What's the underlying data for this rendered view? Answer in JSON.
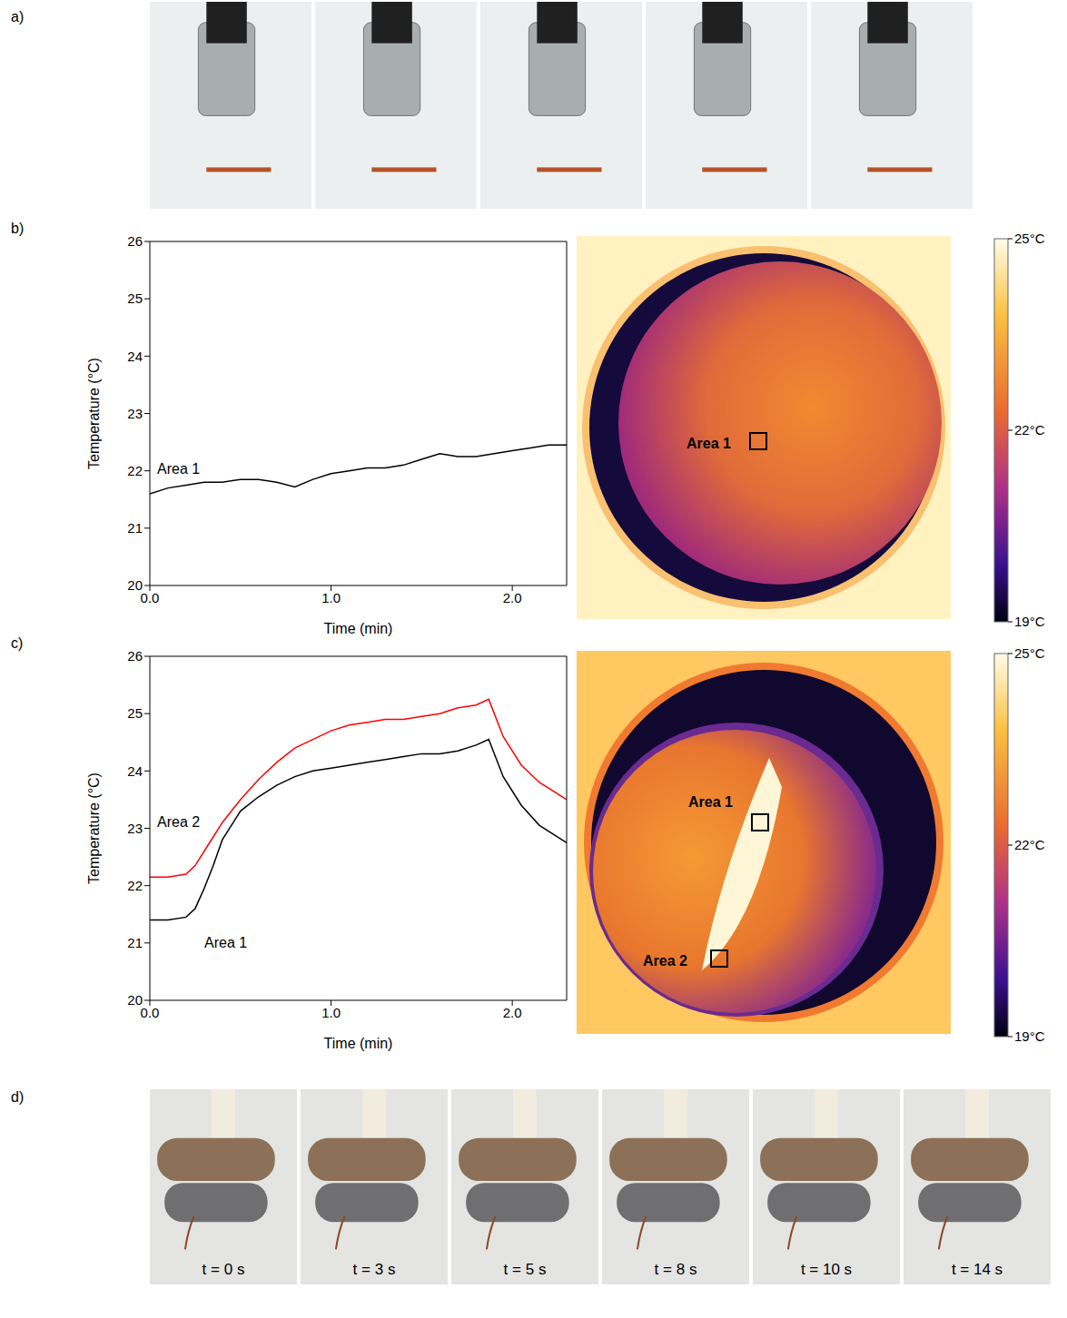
{
  "chart_data": [
    {
      "panel": "b)",
      "type": "line",
      "xlabel": "Time (min)",
      "ylabel": "Temperature (°C)",
      "x": [
        0,
        0.1,
        0.2,
        0.3,
        0.4,
        0.5,
        0.6,
        0.7,
        0.8,
        0.9,
        1.0,
        1.1,
        1.2,
        1.3,
        1.4,
        1.5,
        1.6,
        1.7,
        1.8,
        1.9,
        2.0,
        2.1,
        2.2,
        2.3
      ],
      "series": [
        {
          "name": "Area 1",
          "color": "#000000",
          "values": [
            21.6,
            21.7,
            21.75,
            21.8,
            21.8,
            21.85,
            21.85,
            21.8,
            21.72,
            21.85,
            21.95,
            22.0,
            22.05,
            22.05,
            22.1,
            22.2,
            22.3,
            22.25,
            22.25,
            22.3,
            22.35,
            22.4,
            22.45,
            22.45
          ]
        }
      ],
      "xlim": [
        0,
        2.3
      ],
      "xticks": [
        {
          "value": 0,
          "label": "0.0"
        },
        {
          "value": 1,
          "label": "1.0"
        },
        {
          "value": 2,
          "label": "2.0"
        }
      ],
      "ylim": [
        20,
        26
      ],
      "yticks": [
        20,
        21,
        22,
        23,
        24,
        25,
        26
      ],
      "image": {
        "areas": [
          "Area 1"
        ],
        "colorbar": {
          "range": [
            19,
            25
          ],
          "ticks": [
            {
              "value": 25,
              "label": "25°C"
            },
            {
              "value": 22,
              "label": "22°C"
            },
            {
              "value": 19,
              "label": "19°C"
            }
          ]
        }
      }
    },
    {
      "panel": "c)",
      "type": "line",
      "xlabel": "Time (min)",
      "ylabel": "Temperature (°C)",
      "x": [
        0,
        0.1,
        0.2,
        0.25,
        0.3,
        0.35,
        0.4,
        0.5,
        0.6,
        0.7,
        0.8,
        0.9,
        1.0,
        1.1,
        1.2,
        1.3,
        1.4,
        1.5,
        1.6,
        1.7,
        1.8,
        1.87,
        1.95,
        2.05,
        2.15,
        2.3
      ],
      "series": [
        {
          "name": "Area 2",
          "color": "#ff0000",
          "values": [
            22.15,
            22.15,
            22.2,
            22.35,
            22.6,
            22.85,
            23.1,
            23.5,
            23.85,
            24.15,
            24.4,
            24.55,
            24.7,
            24.8,
            24.85,
            24.9,
            24.9,
            24.95,
            25.0,
            25.1,
            25.15,
            25.25,
            24.6,
            24.1,
            23.8,
            23.5
          ]
        },
        {
          "name": "Area 1",
          "color": "#000000",
          "values": [
            21.4,
            21.4,
            21.45,
            21.6,
            21.95,
            22.35,
            22.8,
            23.3,
            23.55,
            23.75,
            23.9,
            24.0,
            24.05,
            24.1,
            24.15,
            24.2,
            24.25,
            24.3,
            24.3,
            24.35,
            24.45,
            24.55,
            23.9,
            23.4,
            23.05,
            22.75
          ]
        }
      ],
      "xlim": [
        0,
        2.3
      ],
      "xticks": [
        {
          "value": 0,
          "label": "0.0"
        },
        {
          "value": 1,
          "label": "1.0"
        },
        {
          "value": 2,
          "label": "2.0"
        }
      ],
      "ylim": [
        20,
        26
      ],
      "yticks": [
        20,
        21,
        22,
        23,
        24,
        25,
        26
      ],
      "image": {
        "areas": [
          "Area 1",
          "Area 2"
        ],
        "colorbar": {
          "range": [
            19,
            25
          ],
          "ticks": [
            {
              "value": 25,
              "label": "25°C"
            },
            {
              "value": 22,
              "label": "22°C"
            },
            {
              "value": 19,
              "label": "19°C"
            }
          ]
        }
      }
    }
  ],
  "photo_panels": [
    {
      "letter": "a)",
      "frames": 5
    },
    {
      "letter": "d)",
      "frames": [
        "t = 0 s",
        "t = 3 s",
        "t = 5 s",
        "t = 8 s",
        "t = 10 s",
        "t = 14 s"
      ]
    }
  ]
}
